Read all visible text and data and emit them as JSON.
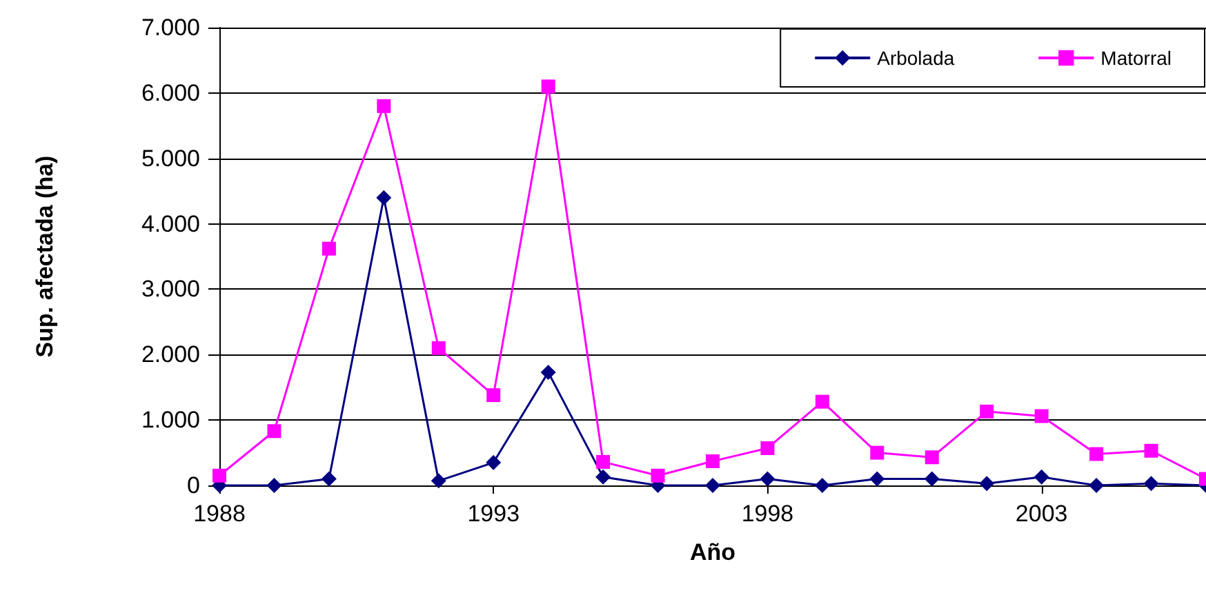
{
  "chart_data": {
    "type": "line",
    "xlabel": "Año",
    "ylabel": "Sup. afectada (ha)",
    "x": [
      1988,
      1989,
      1990,
      1991,
      1992,
      1993,
      1994,
      1995,
      1996,
      1997,
      1998,
      1999,
      2000,
      2001,
      2002,
      2003,
      2004,
      2005,
      2006
    ],
    "series": [
      {
        "name": "Arbolada",
        "color": "#000080",
        "marker": "diamond",
        "values": [
          0,
          0,
          100,
          4400,
          70,
          350,
          1730,
          130,
          0,
          0,
          100,
          0,
          100,
          100,
          30,
          130,
          0,
          30,
          0
        ]
      },
      {
        "name": "Matorral",
        "color": "#ff00ff",
        "marker": "square",
        "values": [
          150,
          830,
          3620,
          5800,
          2100,
          1380,
          6100,
          360,
          150,
          370,
          570,
          1280,
          500,
          430,
          1130,
          1060,
          480,
          530,
          100
        ]
      }
    ],
    "xlim": [
      1988,
      2006
    ],
    "xticks": [
      1988,
      1993,
      1998,
      2003
    ],
    "ylim": [
      0,
      7000
    ],
    "yticks": [
      0,
      {
        "value": 1000,
        "label": "1.000"
      },
      {
        "value": 2000,
        "label": "2.000"
      },
      {
        "value": 3000,
        "label": "3.000"
      },
      {
        "value": 4000,
        "label": "4.000"
      },
      {
        "value": 5000,
        "label": "5.000"
      },
      {
        "value": 6000,
        "label": "6.000"
      },
      {
        "value": 7000,
        "label": "7.000"
      }
    ],
    "grid": "y",
    "legend": "top right",
    "line_style": "solid"
  }
}
